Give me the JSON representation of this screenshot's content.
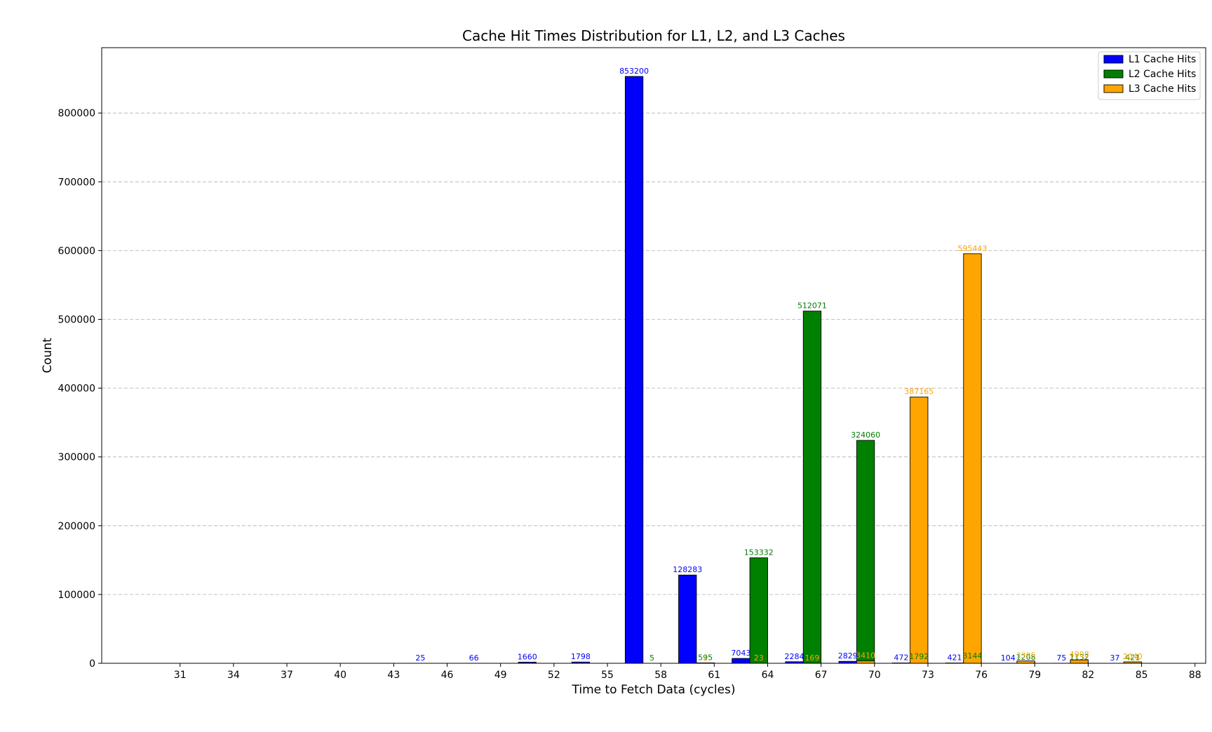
{
  "chart_data": {
    "type": "bar",
    "title": "Cache Hit Times Distribution for L1, L2, and L3 Caches",
    "xlabel": "Time to Fetch Data (cycles)",
    "ylabel": "Count",
    "ylim": [
      0,
      895000
    ],
    "y_ticks": [
      0,
      100000,
      200000,
      300000,
      400000,
      500000,
      600000,
      700000,
      800000
    ],
    "grid": "y-dashed",
    "legend_position": "top-right",
    "categories": [
      "31",
      "34",
      "37",
      "40",
      "43",
      "46",
      "49",
      "52",
      "55",
      "58",
      "61",
      "64",
      "67",
      "70",
      "73",
      "76",
      "79",
      "82",
      "85",
      "88"
    ],
    "x_values_note": null,
    "series": [
      {
        "name": "L1 Cache Hits",
        "color": "#0000ff",
        "x": [
          29.5,
          32.5,
          35.5,
          38.5,
          41.5,
          44.5,
          47.5,
          50.5,
          53.5,
          56.5,
          59.5,
          62.5,
          65.5,
          68.5,
          71.5,
          74.5,
          77.5,
          80.5,
          83.5
        ],
        "values": [
          0,
          0,
          0,
          0,
          0,
          25,
          66,
          1660,
          1798,
          853200,
          128283,
          7043,
          2284,
          2829,
          472,
          421,
          104,
          75,
          37
        ],
        "labels": [
          "",
          "",
          "",
          "",
          "",
          "25",
          "66",
          "1660",
          "1798",
          "853200",
          "128283",
          "7043",
          "2284",
          "2829",
          "472",
          "421",
          "104",
          "75",
          "37"
        ]
      },
      {
        "name": "L2 Cache Hits",
        "color": "#008000",
        "x": [
          57.5,
          60.5,
          63.5,
          66.5,
          69.5,
          72.5,
          75.5,
          78.5,
          81.5,
          84.5
        ],
        "values": [
          5,
          595,
          153332,
          512071,
          324060,
          1792,
          3144,
          1208,
          1132,
          421
        ],
        "labels": [
          "5",
          "595",
          "153332",
          "512071",
          "324060",
          "1792",
          "3144",
          "1208",
          "1132",
          "421"
        ]
      },
      {
        "name": "L3 Cache Hits",
        "color": "#ffa500",
        "x": [
          60.5,
          63.5,
          66.5,
          69.5,
          72.5,
          75.5,
          78.5,
          81.5,
          84.5
        ],
        "values": [
          1,
          23,
          169,
          3410,
          387165,
          595443,
          3395,
          4908,
          2040
        ],
        "labels": [
          "1",
          "23",
          "169",
          "3410",
          "387165",
          "595443",
          "3395",
          "4908",
          "2040"
        ]
      }
    ]
  }
}
